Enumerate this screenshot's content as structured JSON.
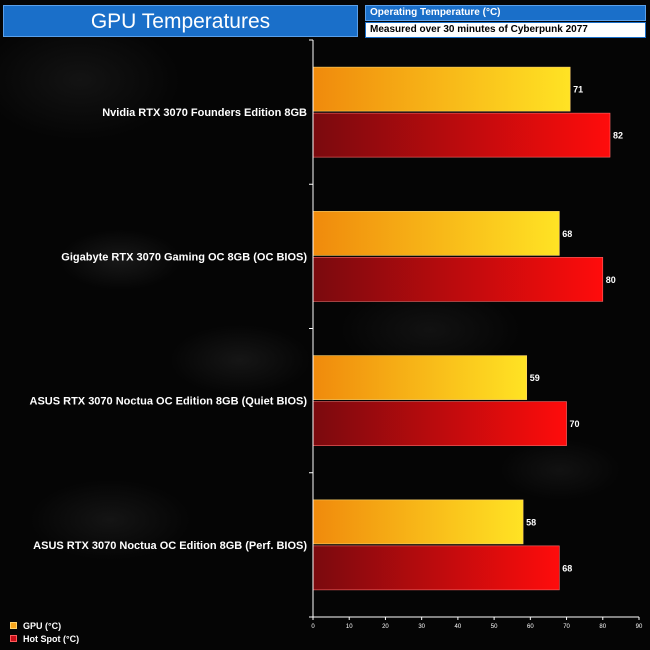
{
  "header": {
    "title": "GPU Temperatures",
    "subtitle_top": "Operating Temperature (°C)",
    "subtitle_bottom": "Measured over 30 minutes of Cyberpunk 2077"
  },
  "legend": {
    "gpu_label": "GPU (°C)",
    "hotspot_label": "Hot Spot (°C)"
  },
  "colors": {
    "title_bg": "#1a6fc9",
    "gpu_bar_light": "#ffe324",
    "gpu_bar_dark": "#f08a0c",
    "hot_bar_light": "#ff0c0c",
    "hot_bar_dark": "#7a0a0e"
  },
  "chart_data": {
    "type": "bar",
    "orientation": "horizontal",
    "title": "GPU Temperatures",
    "xlabel": "",
    "ylabel": "",
    "xlim": [
      0,
      90
    ],
    "x_ticks": [
      0,
      10,
      20,
      30,
      40,
      50,
      60,
      70,
      80,
      90
    ],
    "categories": [
      "Nvidia RTX 3070 Founders Edition 8GB",
      "Gigabyte RTX 3070 Gaming OC 8GB (OC BIOS)",
      "ASUS RTX 3070 Noctua OC Edition 8GB (Quiet BIOS)",
      "ASUS RTX 3070 Noctua OC Edition 8GB (Perf. BIOS)"
    ],
    "series": [
      {
        "name": "GPU (°C)",
        "values": [
          71,
          68,
          59,
          58
        ]
      },
      {
        "name": "Hot Spot (°C)",
        "values": [
          82,
          80,
          70,
          68
        ]
      }
    ],
    "legend_position": "bottom-left",
    "grid": false
  }
}
